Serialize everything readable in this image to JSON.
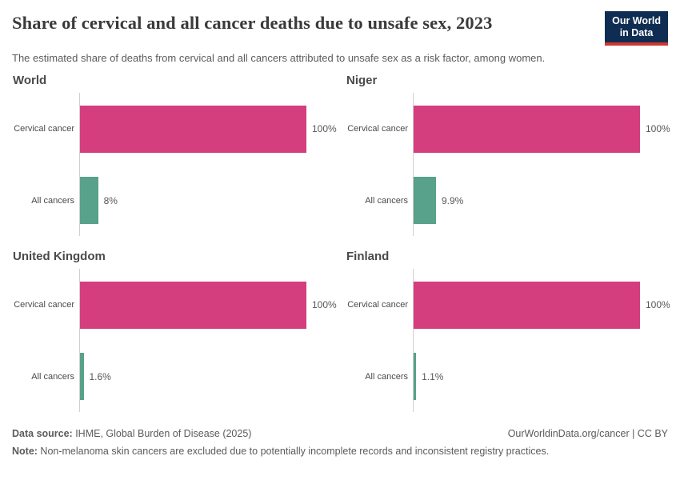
{
  "header": {
    "title": "Share of cervical and all cancer deaths due to unsafe sex, 2023",
    "subtitle": "The estimated share of deaths from cervical and all cancers attributed to unsafe sex as a risk factor, among women.",
    "logo": {
      "line1": "Our World",
      "line2": "in Data"
    }
  },
  "chart_data": {
    "type": "bar",
    "orientation": "horizontal",
    "unit": "%",
    "xlim": [
      0,
      100
    ],
    "grid": false,
    "legend": "none",
    "categories": [
      "Cervical cancer",
      "All cancers"
    ],
    "series_colors": {
      "cervical_cancer": "#d53e7e",
      "all_cancers": "#58a18a"
    },
    "axis_color": "#cfcfcf",
    "panels": [
      {
        "title": "World",
        "values": [
          100,
          8
        ],
        "value_labels": [
          "100%",
          "8%"
        ]
      },
      {
        "title": "Niger",
        "values": [
          100,
          9.9
        ],
        "value_labels": [
          "100%",
          "9.9%"
        ]
      },
      {
        "title": "United Kingdom",
        "values": [
          100,
          1.6
        ],
        "value_labels": [
          "100%",
          "1.6%"
        ]
      },
      {
        "title": "Finland",
        "values": [
          100,
          1.1
        ],
        "value_labels": [
          "100%",
          "1.1%"
        ]
      }
    ]
  },
  "footer": {
    "datasource_label": "Data source:",
    "datasource_value": " IHME, Global Burden of Disease (2025)",
    "attribution": "OurWorldinData.org/cancer | CC BY",
    "note_label": "Note:",
    "note_value": " Non-melanoma skin cancers are excluded due to potentially incomplete records and inconsistent registry practices."
  }
}
